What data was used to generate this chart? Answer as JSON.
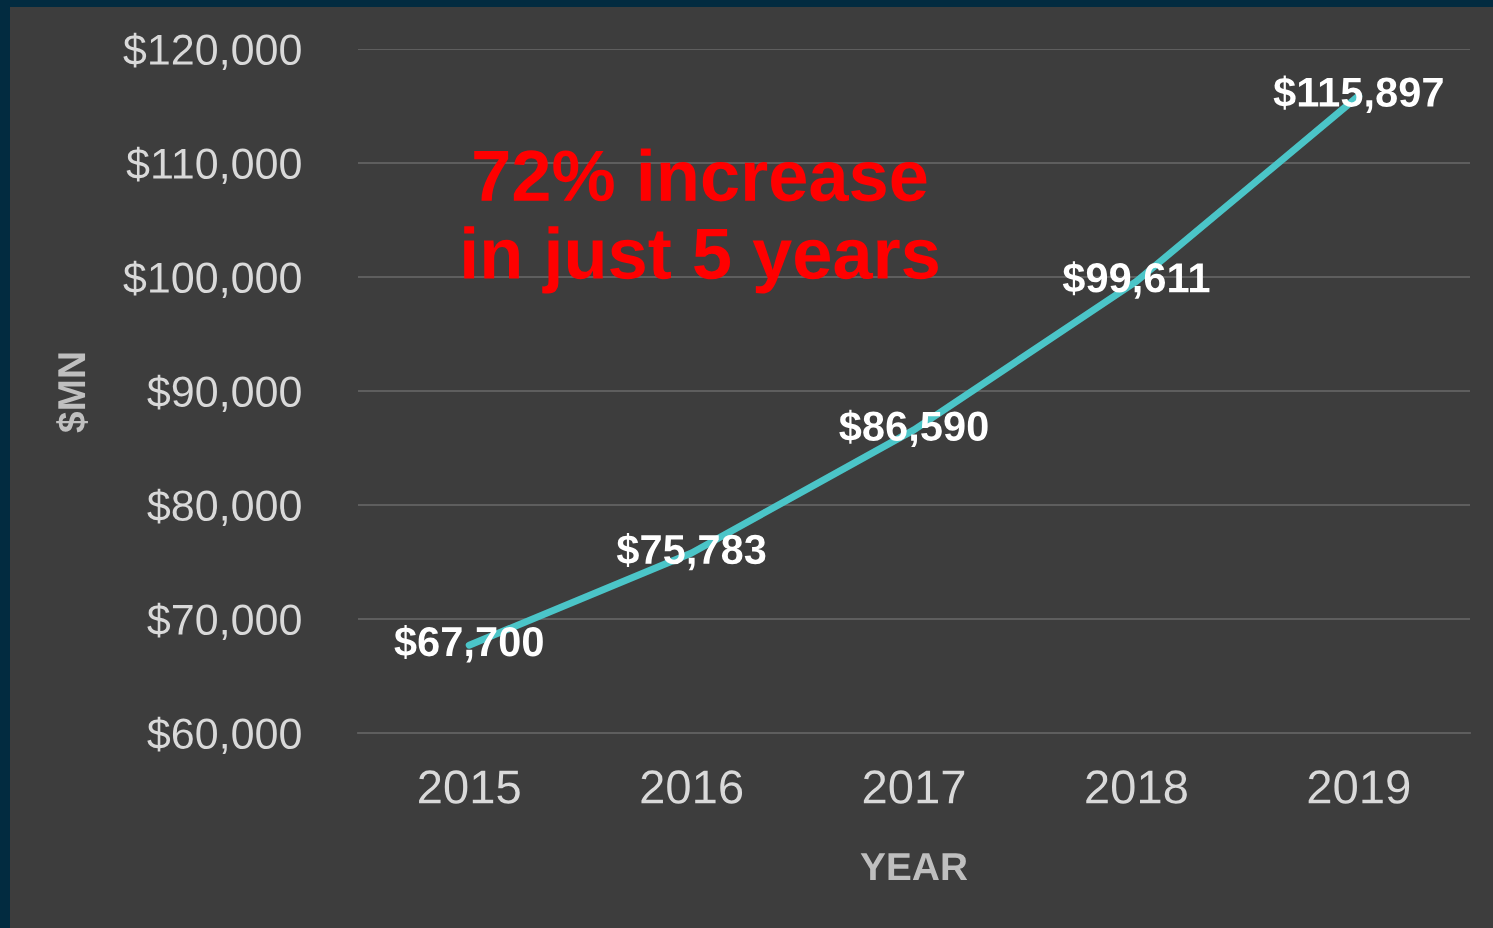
{
  "chart_data": {
    "type": "line",
    "categories": [
      "2015",
      "2016",
      "2017",
      "2018",
      "2019"
    ],
    "series": [
      {
        "color": "#4bc5c8",
        "values": [
          67700,
          75783,
          86590,
          99611,
          115897
        ],
        "value_labels": [
          "$67,700",
          "$75,783",
          "$86,590",
          "$99,611",
          "$115,897"
        ]
      }
    ],
    "xlabel": "YEAR",
    "ylabel": "$MN",
    "ylim": [
      60000,
      120000
    ],
    "yticks": [
      {
        "value": 60000,
        "label": "$60,000"
      },
      {
        "value": 70000,
        "label": "$70,000"
      },
      {
        "value": 80000,
        "label": "$80,000"
      },
      {
        "value": 90000,
        "label": "$90,000"
      },
      {
        "value": 100000,
        "label": "$100,000"
      },
      {
        "value": 110000,
        "label": "$110,000"
      },
      {
        "value": 120000,
        "label": "$120,000"
      }
    ],
    "grid": "y",
    "annotations": [
      "72% increase\nin just 5 years"
    ]
  }
}
